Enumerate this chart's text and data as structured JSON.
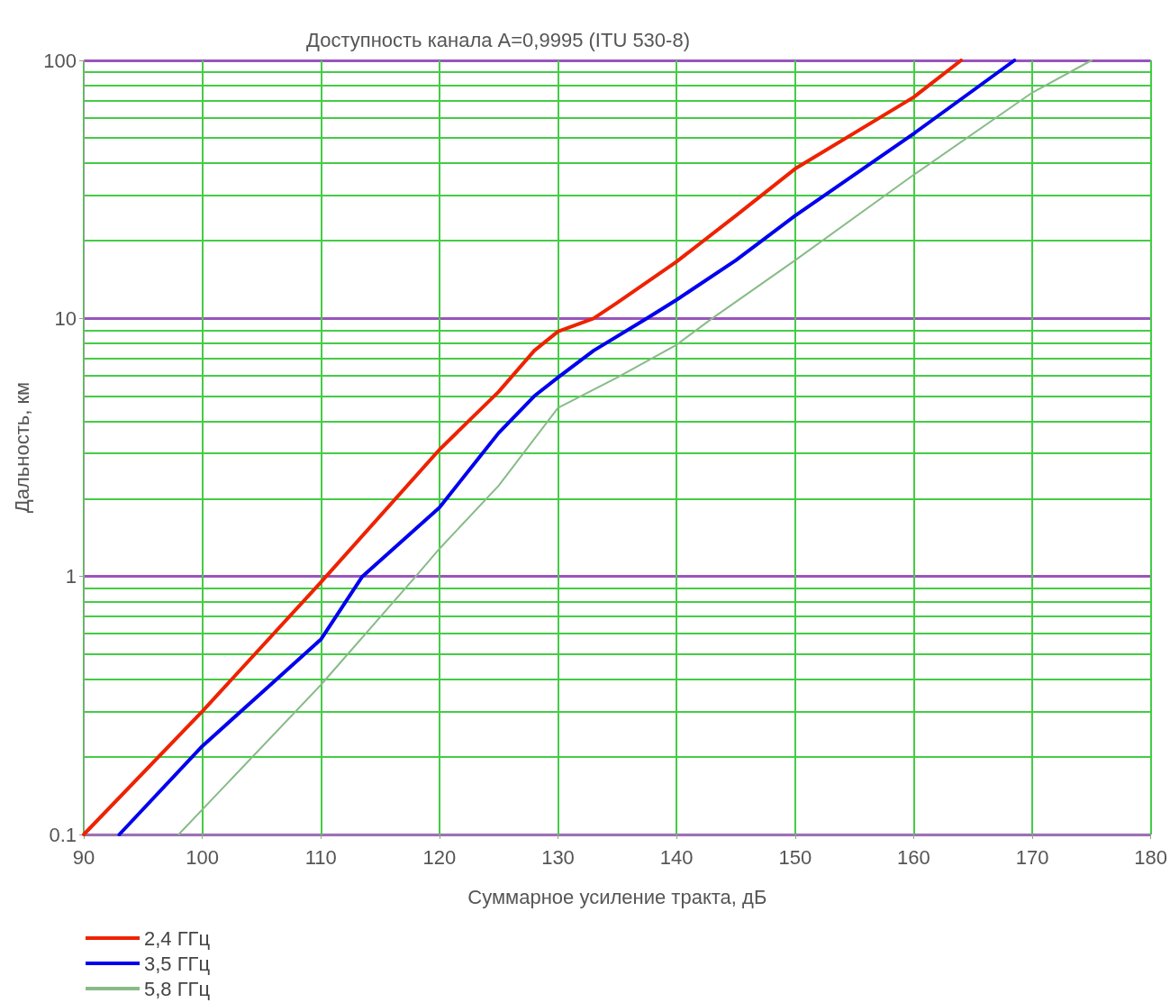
{
  "chart_data": {
    "type": "line",
    "title": "Доступность канала A=0,9995 (ITU 530-8)",
    "xlabel": "Суммарное усиление тракта, дБ",
    "ylabel": "Дальность, км",
    "series": [
      {
        "name": "2,4 ГГц",
        "color": "#ee2200",
        "x": [
          90,
          100,
          110,
          120,
          125,
          128,
          130,
          133,
          135,
          140,
          145,
          150,
          160,
          164
        ],
        "values": [
          0.1,
          0.3,
          0.95,
          3.1,
          5.2,
          7.5,
          8.9,
          10,
          11.5,
          16.6,
          25,
          38,
          72,
          100
        ]
      },
      {
        "name": "3,5 ГГц",
        "color": "#0000ee",
        "x": [
          93,
          100,
          110,
          113.5,
          120,
          125,
          128,
          130,
          133,
          137.5,
          140,
          145,
          150,
          160,
          168.5
        ],
        "values": [
          0.1,
          0.22,
          0.57,
          1,
          1.85,
          3.6,
          5,
          5.9,
          7.5,
          10,
          11.8,
          16.8,
          25,
          52,
          100
        ]
      },
      {
        "name": "5,8 ГГц",
        "color": "#88bb88",
        "x": [
          98,
          110,
          118,
          120,
          125,
          130,
          135,
          140,
          143,
          150,
          160,
          170,
          175
        ],
        "values": [
          0.1,
          0.38,
          1,
          1.28,
          2.25,
          4.5,
          5.9,
          7.9,
          10,
          16.8,
          36,
          75,
          100
        ]
      }
    ],
    "xlim": [
      90,
      180
    ],
    "xticks": [
      90,
      100,
      110,
      120,
      130,
      140,
      150,
      160,
      170,
      180
    ],
    "ylim": [
      0.1,
      100
    ],
    "yticks": [
      0.1,
      1,
      10,
      100
    ],
    "log": "y",
    "grid": true,
    "legend": "bottom left",
    "marker": "none",
    "line_style": "solid"
  }
}
